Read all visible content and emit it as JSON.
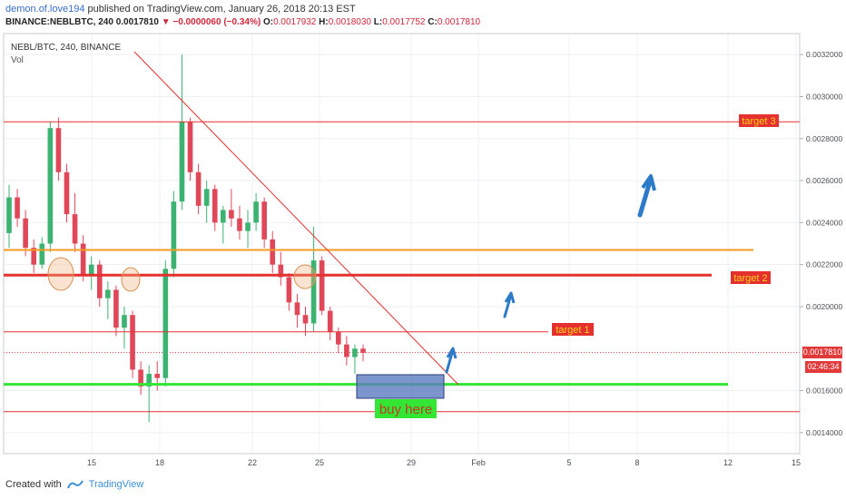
{
  "header": {
    "author": "demon.of.love194",
    "published": "published on TradingView.com, January 26, 2018 20:13 EST",
    "symbol_line": "BINANCE:NEBLBTC, 240",
    "last": "0.0017810",
    "change": "−0.0000060 (−0.34%)",
    "o_label": "O:",
    "o_val": "0.0017932",
    "h_label": "H:",
    "h_val": "0.0018030",
    "l_label": "L:",
    "l_val": "0.0017752",
    "c_label": "C:",
    "c_val": "0.0017810"
  },
  "legend": {
    "title": "NEBL/BTC, 240, BINANCE",
    "volume": "Vol"
  },
  "price_tag": "0.0017810",
  "time_tag": "02:46:34",
  "footer": {
    "created": "Created with",
    "brand": "TradingView"
  },
  "colors": {
    "up": "#3cb371",
    "down": "#e0485a",
    "grid": "#eef0f3",
    "annot_red": "#e53030",
    "annot_green": "#33e633",
    "annot_orange": "#f59a23",
    "arrow": "#2d7ac8"
  },
  "chart_data": {
    "type": "candlestick",
    "symbol": "NEBL/BTC",
    "timeframe": "240",
    "exchange": "BINANCE",
    "ylim": [
      0.0013,
      0.0033
    ],
    "y_ticks": [
      "0.0032000",
      "0.0030000",
      "0.0028000",
      "0.0026000",
      "0.0024000",
      "0.0022000",
      "0.0020000",
      "0.0016000",
      "0.0014000"
    ],
    "x_ticks": [
      "15",
      "18",
      "22",
      "25",
      "29",
      "Feb",
      "5",
      "8",
      "12",
      "15"
    ],
    "candles": [
      {
        "o": 0.00235,
        "h": 0.00258,
        "l": 0.00228,
        "c": 0.00252
      },
      {
        "o": 0.00252,
        "h": 0.00256,
        "l": 0.00238,
        "c": 0.00242
      },
      {
        "o": 0.00242,
        "h": 0.00246,
        "l": 0.00224,
        "c": 0.00228
      },
      {
        "o": 0.00228,
        "h": 0.00232,
        "l": 0.00216,
        "c": 0.0022
      },
      {
        "o": 0.0022,
        "h": 0.00233,
        "l": 0.00218,
        "c": 0.0023
      },
      {
        "o": 0.0023,
        "h": 0.00288,
        "l": 0.00226,
        "c": 0.00285
      },
      {
        "o": 0.00285,
        "h": 0.0029,
        "l": 0.0026,
        "c": 0.00264
      },
      {
        "o": 0.00264,
        "h": 0.00268,
        "l": 0.0024,
        "c": 0.00244
      },
      {
        "o": 0.00244,
        "h": 0.00254,
        "l": 0.00226,
        "c": 0.0023
      },
      {
        "o": 0.0023,
        "h": 0.00234,
        "l": 0.00212,
        "c": 0.00215
      },
      {
        "o": 0.00215,
        "h": 0.00224,
        "l": 0.00208,
        "c": 0.0022
      },
      {
        "o": 0.0022,
        "h": 0.00222,
        "l": 0.002,
        "c": 0.00204
      },
      {
        "o": 0.00204,
        "h": 0.00212,
        "l": 0.00194,
        "c": 0.00208
      },
      {
        "o": 0.00208,
        "h": 0.0021,
        "l": 0.00186,
        "c": 0.0019
      },
      {
        "o": 0.0019,
        "h": 0.002,
        "l": 0.0018,
        "c": 0.00196
      },
      {
        "o": 0.00196,
        "h": 0.00198,
        "l": 0.00166,
        "c": 0.0017
      },
      {
        "o": 0.0017,
        "h": 0.00174,
        "l": 0.00158,
        "c": 0.00162
      },
      {
        "o": 0.00162,
        "h": 0.00172,
        "l": 0.00145,
        "c": 0.00168
      },
      {
        "o": 0.00168,
        "h": 0.00174,
        "l": 0.0016,
        "c": 0.00166
      },
      {
        "o": 0.00166,
        "h": 0.00222,
        "l": 0.00162,
        "c": 0.00218
      },
      {
        "o": 0.00218,
        "h": 0.00255,
        "l": 0.00214,
        "c": 0.0025
      },
      {
        "o": 0.0025,
        "h": 0.0032,
        "l": 0.00246,
        "c": 0.00288
      },
      {
        "o": 0.00288,
        "h": 0.0029,
        "l": 0.0026,
        "c": 0.00264
      },
      {
        "o": 0.00264,
        "h": 0.00268,
        "l": 0.00244,
        "c": 0.00248
      },
      {
        "o": 0.00248,
        "h": 0.0026,
        "l": 0.0024,
        "c": 0.00256
      },
      {
        "o": 0.00256,
        "h": 0.00258,
        "l": 0.00236,
        "c": 0.0024
      },
      {
        "o": 0.0024,
        "h": 0.00248,
        "l": 0.0023,
        "c": 0.00246
      },
      {
        "o": 0.00246,
        "h": 0.00256,
        "l": 0.00238,
        "c": 0.00242
      },
      {
        "o": 0.00242,
        "h": 0.00248,
        "l": 0.00232,
        "c": 0.00236
      },
      {
        "o": 0.00236,
        "h": 0.00246,
        "l": 0.00228,
        "c": 0.0024
      },
      {
        "o": 0.0024,
        "h": 0.00254,
        "l": 0.00236,
        "c": 0.0025
      },
      {
        "o": 0.0025,
        "h": 0.00252,
        "l": 0.00228,
        "c": 0.00232
      },
      {
        "o": 0.00232,
        "h": 0.00236,
        "l": 0.00216,
        "c": 0.0022
      },
      {
        "o": 0.0022,
        "h": 0.00226,
        "l": 0.0021,
        "c": 0.00214
      },
      {
        "o": 0.00214,
        "h": 0.00216,
        "l": 0.00198,
        "c": 0.00202
      },
      {
        "o": 0.00202,
        "h": 0.00206,
        "l": 0.0019,
        "c": 0.00196
      },
      {
        "o": 0.00196,
        "h": 0.002,
        "l": 0.00186,
        "c": 0.00192
      },
      {
        "o": 0.00192,
        "h": 0.00238,
        "l": 0.00188,
        "c": 0.00222
      },
      {
        "o": 0.00222,
        "h": 0.00224,
        "l": 0.00196,
        "c": 0.00198
      },
      {
        "o": 0.00198,
        "h": 0.002,
        "l": 0.00184,
        "c": 0.00188
      },
      {
        "o": 0.00188,
        "h": 0.0019,
        "l": 0.00178,
        "c": 0.00182
      },
      {
        "o": 0.00182,
        "h": 0.00186,
        "l": 0.00172,
        "c": 0.00176
      },
      {
        "o": 0.00176,
        "h": 0.00182,
        "l": 0.00168,
        "c": 0.0018
      },
      {
        "o": 0.0018,
        "h": 0.00182,
        "l": 0.00174,
        "c": 0.00178
      }
    ],
    "lines": [
      {
        "label": "target 3",
        "price": 0.00288,
        "color": "#e53030"
      },
      {
        "label": "target 2",
        "price": 0.00215,
        "color": "#e53030"
      },
      {
        "label": "target 1",
        "price": 0.00188,
        "color": "#e53030"
      },
      {
        "label": "",
        "price": 0.00227,
        "color": "#f59a23"
      },
      {
        "label": "",
        "price": 0.00163,
        "color": "#33e633"
      },
      {
        "label": "",
        "price": 0.0015,
        "color": "#e53030"
      }
    ],
    "buy_zone_label": "buy here"
  }
}
